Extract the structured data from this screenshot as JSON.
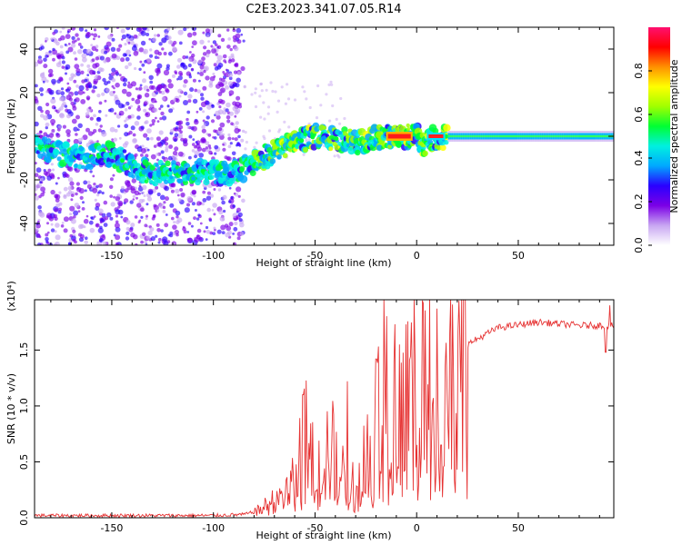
{
  "chart_data": [
    {
      "type": "heatmap",
      "title": "C2E3.2023.341.07.05.R14",
      "xlabel": "Height of straight line (km)",
      "ylabel": "Frequency (Hz)",
      "xlim": [
        -188,
        97
      ],
      "ylim": [
        -50,
        50
      ],
      "xticks": [
        -150,
        -100,
        -50,
        0,
        50
      ],
      "yticks": [
        -40,
        -20,
        0,
        20,
        40
      ],
      "colorbar": {
        "label": "Normalized spectral amplitude",
        "range": [
          0,
          1
        ],
        "ticks": [
          "0.0",
          "0.2",
          "0.4",
          "0.6",
          "0.8"
        ],
        "colormap": [
          "#ffffff",
          "#c8a6f2",
          "#7b00e6",
          "#2a00ff",
          "#00a8ff",
          "#00f0e0",
          "#00ff33",
          "#a0ff00",
          "#ffff00",
          "#ff9000",
          "#ff0000",
          "#ff1070"
        ]
      },
      "ridge": {
        "x": [
          -188,
          -175,
          -165,
          -150,
          -140,
          -130,
          -115,
          -105,
          -95,
          -88,
          -80,
          -70,
          -60,
          -50,
          -40,
          -30,
          -22,
          -15,
          -8,
          0,
          3,
          8,
          15,
          30,
          60,
          97
        ],
        "y": [
          -5,
          -8,
          -10,
          -8,
          -14,
          -17,
          -17,
          -16,
          -17,
          -16,
          -12,
          -7,
          -3,
          0,
          -1,
          -3,
          -1,
          0,
          0,
          0,
          -4,
          -1,
          0,
          0,
          0,
          0
        ]
      },
      "peak": {
        "x": [
          -15,
          -2
        ],
        "y": 0
      }
    },
    {
      "type": "line",
      "xlabel": "Height of straight line (km)",
      "ylabel": "SNR (10 * v/v)",
      "scale_label": "(x10⁴)",
      "xlim": [
        -188,
        97
      ],
      "ylim": [
        0,
        1.95
      ],
      "xticks": [
        -150,
        -100,
        -50,
        0,
        50
      ],
      "yticks": [
        "0.0",
        "0.5",
        "1.0",
        "1.5"
      ],
      "color": "#e63232",
      "envelope": {
        "x": [
          -188,
          -100,
          -85,
          -78,
          -70,
          -60,
          -55,
          -50,
          -45,
          -40,
          -35,
          -30,
          -25,
          -20,
          -15,
          -12,
          -10,
          -5,
          0,
          5,
          8,
          10,
          12,
          15,
          20,
          25,
          30,
          40,
          60,
          80,
          97
        ],
        "y": [
          0.02,
          0.02,
          0.03,
          0.06,
          0.15,
          0.3,
          0.7,
          0.5,
          0.6,
          0.55,
          0.3,
          0.25,
          0.6,
          0.8,
          1.2,
          0.8,
          1.2,
          1.15,
          1.25,
          1.3,
          1.35,
          1.2,
          0.9,
          1.3,
          1.45,
          1.55,
          1.6,
          1.7,
          1.75,
          1.72,
          1.72
        ]
      },
      "spikes": [
        {
          "x": -16,
          "y": 1.95
        },
        {
          "x": -20,
          "y": 1.42
        },
        {
          "x": -34,
          "y": 1.22
        },
        {
          "x": -56,
          "y": 1.1
        },
        {
          "x": 10,
          "y": 1.87
        },
        {
          "x": 12,
          "y": 0.65
        },
        {
          "x": 95,
          "y": 1.9
        },
        {
          "x": 93,
          "y": 1.48
        }
      ]
    }
  ]
}
